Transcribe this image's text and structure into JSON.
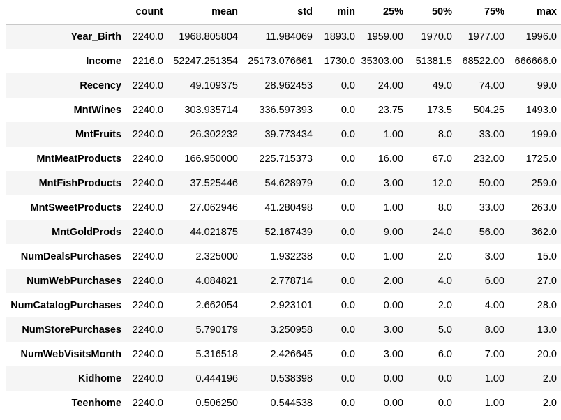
{
  "table": {
    "index_header": "",
    "columns": [
      "count",
      "mean",
      "std",
      "min",
      "25%",
      "50%",
      "75%",
      "max"
    ],
    "rows": [
      {
        "label": "Year_Birth",
        "values": [
          "2240.0",
          "1968.805804",
          "11.984069",
          "1893.0",
          "1959.00",
          "1970.0",
          "1977.00",
          "1996.0"
        ]
      },
      {
        "label": "Income",
        "values": [
          "2216.0",
          "52247.251354",
          "25173.076661",
          "1730.0",
          "35303.00",
          "51381.5",
          "68522.00",
          "666666.0"
        ]
      },
      {
        "label": "Recency",
        "values": [
          "2240.0",
          "49.109375",
          "28.962453",
          "0.0",
          "24.00",
          "49.0",
          "74.00",
          "99.0"
        ]
      },
      {
        "label": "MntWines",
        "values": [
          "2240.0",
          "303.935714",
          "336.597393",
          "0.0",
          "23.75",
          "173.5",
          "504.25",
          "1493.0"
        ]
      },
      {
        "label": "MntFruits",
        "values": [
          "2240.0",
          "26.302232",
          "39.773434",
          "0.0",
          "1.00",
          "8.0",
          "33.00",
          "199.0"
        ]
      },
      {
        "label": "MntMeatProducts",
        "values": [
          "2240.0",
          "166.950000",
          "225.715373",
          "0.0",
          "16.00",
          "67.0",
          "232.00",
          "1725.0"
        ]
      },
      {
        "label": "MntFishProducts",
        "values": [
          "2240.0",
          "37.525446",
          "54.628979",
          "0.0",
          "3.00",
          "12.0",
          "50.00",
          "259.0"
        ]
      },
      {
        "label": "MntSweetProducts",
        "values": [
          "2240.0",
          "27.062946",
          "41.280498",
          "0.0",
          "1.00",
          "8.0",
          "33.00",
          "263.0"
        ]
      },
      {
        "label": "MntGoldProds",
        "values": [
          "2240.0",
          "44.021875",
          "52.167439",
          "0.0",
          "9.00",
          "24.0",
          "56.00",
          "362.0"
        ]
      },
      {
        "label": "NumDealsPurchases",
        "values": [
          "2240.0",
          "2.325000",
          "1.932238",
          "0.0",
          "1.00",
          "2.0",
          "3.00",
          "15.0"
        ]
      },
      {
        "label": "NumWebPurchases",
        "values": [
          "2240.0",
          "4.084821",
          "2.778714",
          "0.0",
          "2.00",
          "4.0",
          "6.00",
          "27.0"
        ]
      },
      {
        "label": "NumCatalogPurchases",
        "values": [
          "2240.0",
          "2.662054",
          "2.923101",
          "0.0",
          "0.00",
          "2.0",
          "4.00",
          "28.0"
        ]
      },
      {
        "label": "NumStorePurchases",
        "values": [
          "2240.0",
          "5.790179",
          "3.250958",
          "0.0",
          "3.00",
          "5.0",
          "8.00",
          "13.0"
        ]
      },
      {
        "label": "NumWebVisitsMonth",
        "values": [
          "2240.0",
          "5.316518",
          "2.426645",
          "0.0",
          "3.00",
          "6.0",
          "7.00",
          "20.0"
        ]
      },
      {
        "label": "Kidhome",
        "values": [
          "2240.0",
          "0.444196",
          "0.538398",
          "0.0",
          "0.00",
          "0.0",
          "1.00",
          "2.0"
        ]
      },
      {
        "label": "Teenhome",
        "values": [
          "2240.0",
          "0.506250",
          "0.544538",
          "0.0",
          "0.00",
          "0.0",
          "1.00",
          "2.0"
        ]
      }
    ]
  },
  "colors": {
    "striped_row_background": "#f5f5f5",
    "header_rule": "#c8c8c8",
    "text": "#000000"
  }
}
